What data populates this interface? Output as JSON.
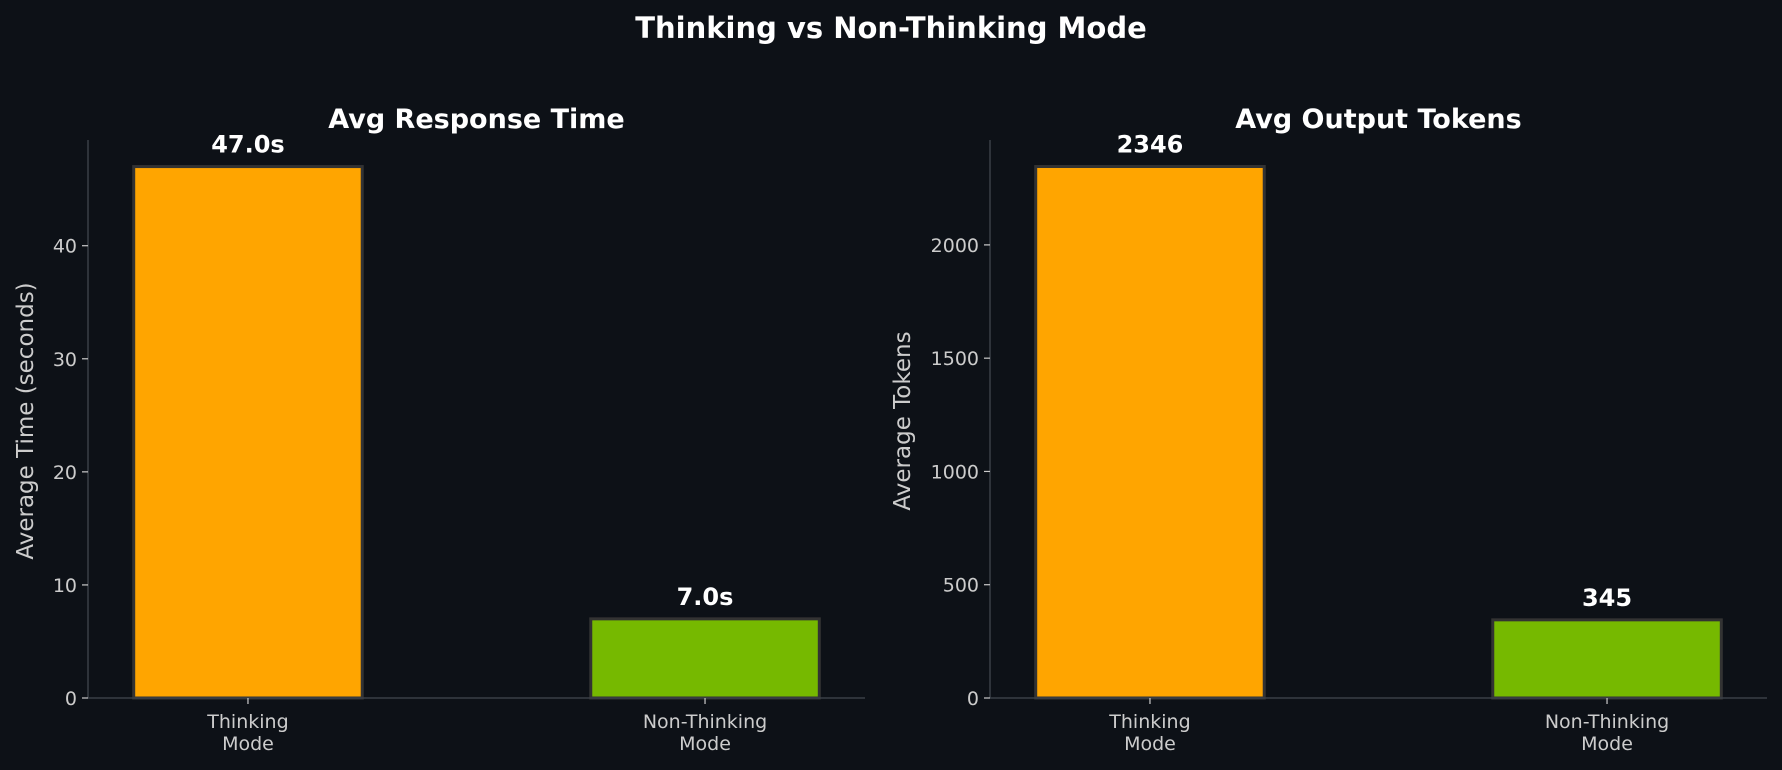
{
  "figure": {
    "title": "Thinking vs Non-Thinking Mode",
    "background": "#0d1117"
  },
  "chart_data": [
    {
      "type": "bar",
      "title": "Avg Response Time",
      "xlabel": "",
      "ylabel": "Average Time (seconds)",
      "categories": [
        "Thinking\nMode",
        "Non-Thinking\nMode"
      ],
      "values": [
        47.0,
        7.0
      ],
      "data_labels": [
        "47.0s",
        "7.0s"
      ],
      "colors": [
        "#ffa500",
        "#76b900"
      ],
      "ylim": [
        0,
        49.35
      ],
      "yticks": [
        0,
        10,
        20,
        30,
        40
      ],
      "ytick_labels": [
        "0",
        "10",
        "20",
        "30",
        "40"
      ],
      "grid": false,
      "legend": "none"
    },
    {
      "type": "bar",
      "title": "Avg Output Tokens",
      "xlabel": "",
      "ylabel": "Average Tokens",
      "categories": [
        "Thinking\nMode",
        "Non-Thinking\nMode"
      ],
      "values": [
        2346,
        345
      ],
      "data_labels": [
        "2346",
        "345"
      ],
      "colors": [
        "#ffa500",
        "#76b900"
      ],
      "ylim": [
        0,
        2463
      ],
      "yticks": [
        0,
        500,
        1000,
        1500,
        2000
      ],
      "ytick_labels": [
        "0",
        "500",
        "1000",
        "1500",
        "2000"
      ],
      "grid": false,
      "legend": "none"
    }
  ]
}
